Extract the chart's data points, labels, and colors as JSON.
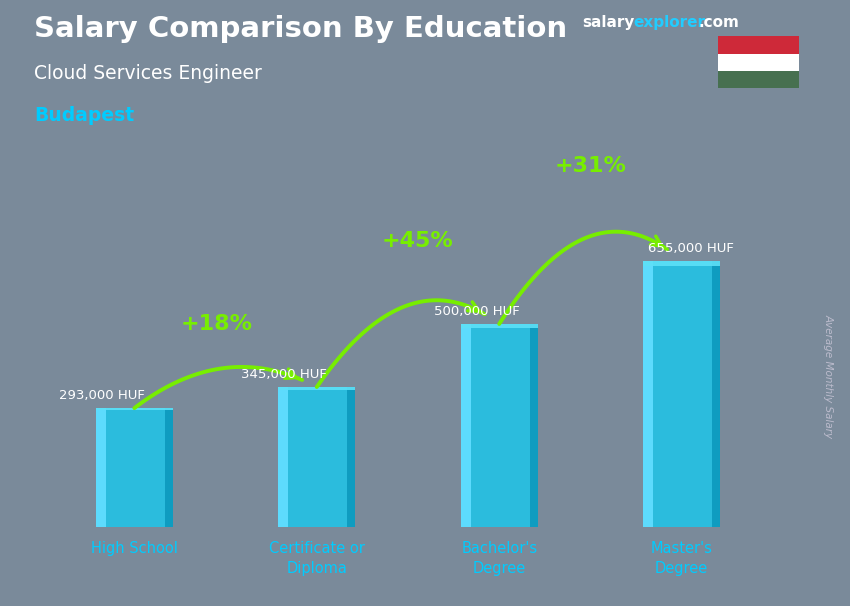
{
  "title_main": "Salary Comparison By Education",
  "subtitle1": "Cloud Services Engineer",
  "subtitle2": "Budapest",
  "ylabel": "Average Monthly Salary",
  "categories": [
    "High School",
    "Certificate or\nDiploma",
    "Bachelor's\nDegree",
    "Master's\nDegree"
  ],
  "values": [
    293000,
    345000,
    500000,
    655000
  ],
  "value_labels": [
    "293,000 HUF",
    "345,000 HUF",
    "500,000 HUF",
    "655,000 HUF"
  ],
  "pct_labels": [
    "+18%",
    "+45%",
    "+31%"
  ],
  "bar_color_main": "#1ac8ed",
  "bar_color_light": "#5de0f7",
  "bar_color_dark": "#0e9bbf",
  "bar_color_left": "#60ddff",
  "arrow_color": "#77ee00",
  "pct_color": "#77ee00",
  "title_color": "#ffffff",
  "subtitle1_color": "#ffffff",
  "subtitle2_color": "#00ccff",
  "value_label_color": "#ffffff",
  "xlabel_color": "#00ccff",
  "bg_color": "#7a8a9a",
  "ylim": [
    0,
    820000
  ],
  "flag_red": "#ce2939",
  "flag_white": "#ffffff",
  "flag_green": "#477050",
  "website_salary_color": "#ffffff",
  "website_explorer_color": "#22ccff",
  "website_dot_com_color": "#ffffff"
}
